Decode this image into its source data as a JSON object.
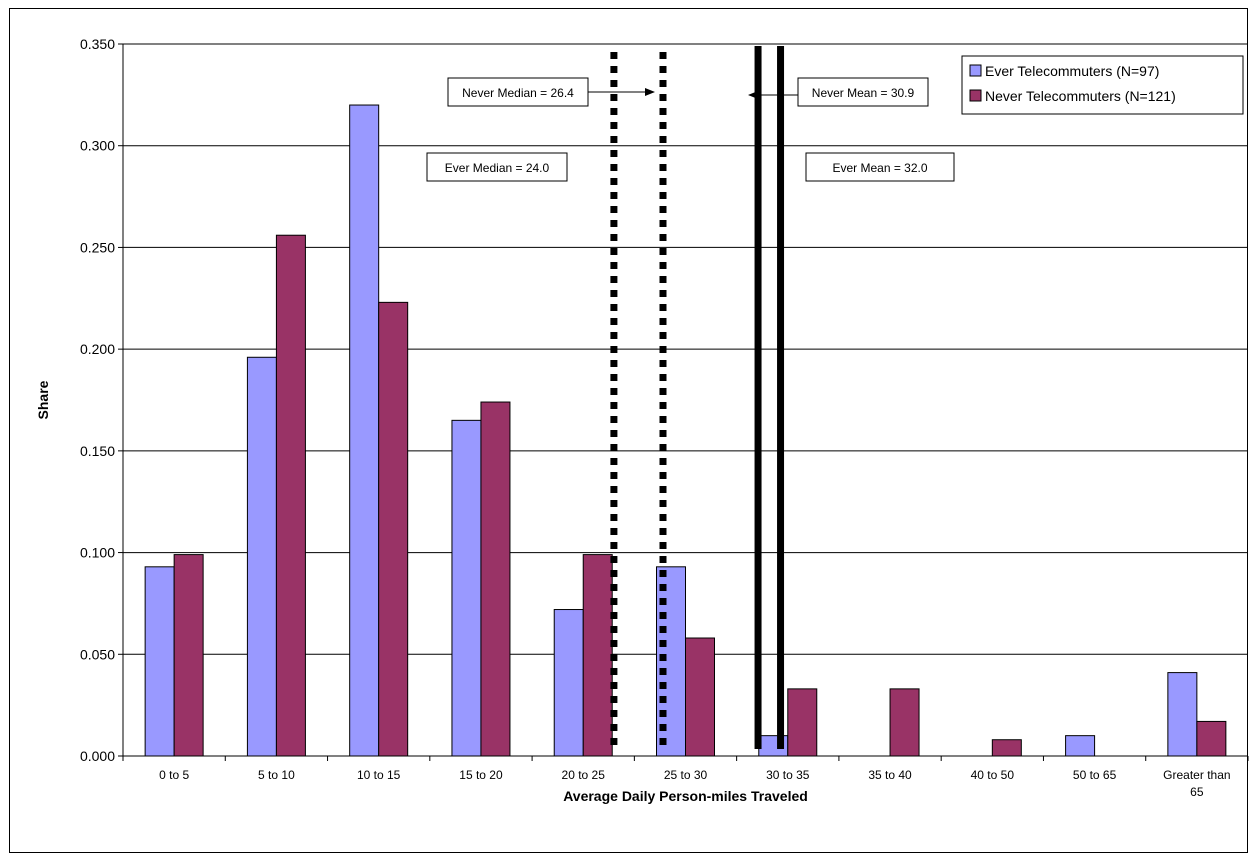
{
  "chart_data": {
    "type": "bar",
    "title": "",
    "xlabel": "Average Daily Person-miles Traveled",
    "ylabel": "Share",
    "ylim": [
      0,
      0.35
    ],
    "yticks": [
      "0.000",
      "0.050",
      "0.100",
      "0.150",
      "0.200",
      "0.250",
      "0.300",
      "0.350"
    ],
    "grid": "horizontal",
    "legend_position": "top-right",
    "categories": [
      "0 to 5",
      "5 to 10",
      "10 to 15",
      "15 to 20",
      "20 to 25",
      "25 to 30",
      "30 to 35",
      "35 to 40",
      "40 to 50",
      "50 to 65",
      "Greater than 65"
    ],
    "series": [
      {
        "name": "Ever Telecommuters (N=97)",
        "color": "#9999ff",
        "values": [
          0.093,
          0.196,
          0.32,
          0.165,
          0.072,
          0.093,
          0.01,
          0.0,
          0.0,
          0.01,
          0.041
        ]
      },
      {
        "name": "Never Telecommuters (N=121)",
        "color": "#993366",
        "values": [
          0.099,
          0.256,
          0.223,
          0.174,
          0.099,
          0.058,
          0.033,
          0.033,
          0.008,
          0.0,
          0.017
        ]
      }
    ],
    "annotations": [
      {
        "text": "Never Median = 26.4",
        "line_style": "dotted",
        "arrow": "right"
      },
      {
        "text": "Ever Median = 24.0",
        "line_style": "dotted"
      },
      {
        "text": "Never Mean = 30.9",
        "line_style": "solid",
        "arrow": "left"
      },
      {
        "text": "Ever Mean = 32.0",
        "line_style": "solid"
      }
    ]
  }
}
